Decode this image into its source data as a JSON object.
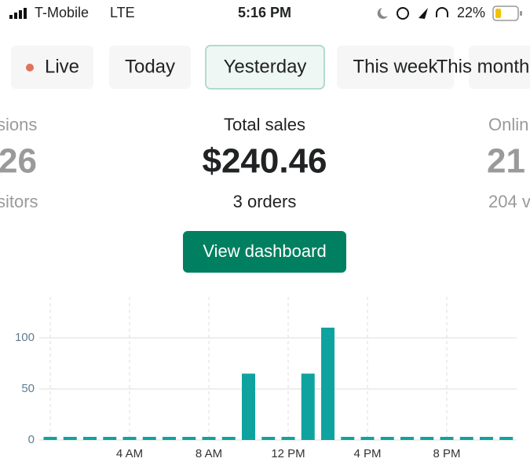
{
  "status_bar": {
    "carrier": "T-Mobile",
    "network": "LTE",
    "time": "5:16 PM",
    "battery": "22%"
  },
  "tabs": [
    "Live",
    "Today",
    "Yesterday",
    "This week",
    "This month"
  ],
  "selected_tab": 2,
  "left_card": {
    "label": "sions",
    "value": "26",
    "sub": "sitors"
  },
  "center_card": {
    "label": "Total sales",
    "value": "$240.46",
    "sub": "3 orders"
  },
  "right_card": {
    "label": "Onlin",
    "value": "21",
    "sub": "204 v"
  },
  "button": "View dashboard",
  "chart_data": {
    "type": "bar",
    "categories": [
      null,
      null,
      null,
      null,
      "4 AM",
      null,
      null,
      null,
      "8 AM",
      null,
      null,
      null,
      "12 PM",
      null,
      null,
      null,
      "4 PM",
      null,
      null,
      null,
      "8 PM",
      null,
      null,
      null
    ],
    "values": [
      0,
      0,
      0,
      0,
      0,
      0,
      0,
      0,
      0,
      0,
      65,
      0,
      0,
      65,
      110,
      0,
      0,
      0,
      0,
      0,
      0,
      0,
      0,
      0
    ],
    "color": "#0fa3a0",
    "ylim": [
      0,
      140
    ],
    "yticks": [
      0,
      50,
      100
    ],
    "grid": true
  }
}
